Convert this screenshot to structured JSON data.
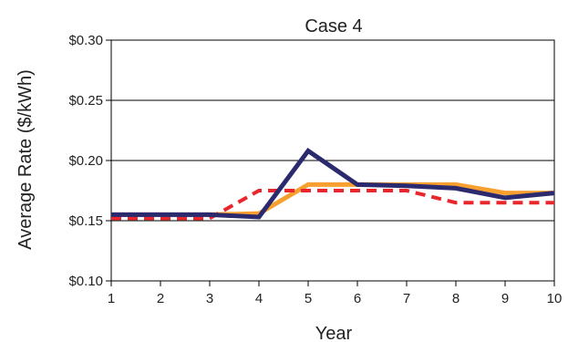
{
  "chart_data": {
    "type": "line",
    "title": "Case 4",
    "xlabel": "Year",
    "ylabel": "Average Rate ($/kWh)",
    "x": [
      1,
      2,
      3,
      4,
      5,
      6,
      7,
      8,
      9,
      10
    ],
    "xlim": [
      1,
      10
    ],
    "ylim": [
      0.1,
      0.3
    ],
    "y_ticks": [
      0.1,
      0.15,
      0.2,
      0.25,
      0.3
    ],
    "y_tick_labels": [
      "$0.10",
      "$0.15",
      "$0.20",
      "$0.25",
      "$0.30"
    ],
    "x_tick_labels": [
      "1",
      "2",
      "3",
      "4",
      "5",
      "6",
      "7",
      "8",
      "9",
      "10"
    ],
    "grid": "horizontal",
    "legend": "none",
    "series": [
      {
        "color": "#F7A030",
        "style": "solid",
        "values": [
          0.155,
          0.155,
          0.155,
          0.156,
          0.18,
          0.18,
          0.18,
          0.18,
          0.173,
          0.173
        ]
      },
      {
        "color": "#E8262C",
        "style": "dashed",
        "values": [
          0.152,
          0.152,
          0.152,
          0.175,
          0.175,
          0.175,
          0.175,
          0.165,
          0.165,
          0.165
        ]
      },
      {
        "color": "#2B2A6E",
        "style": "solid",
        "values": [
          0.155,
          0.155,
          0.155,
          0.153,
          0.208,
          0.18,
          0.179,
          0.177,
          0.169,
          0.173
        ]
      }
    ]
  }
}
